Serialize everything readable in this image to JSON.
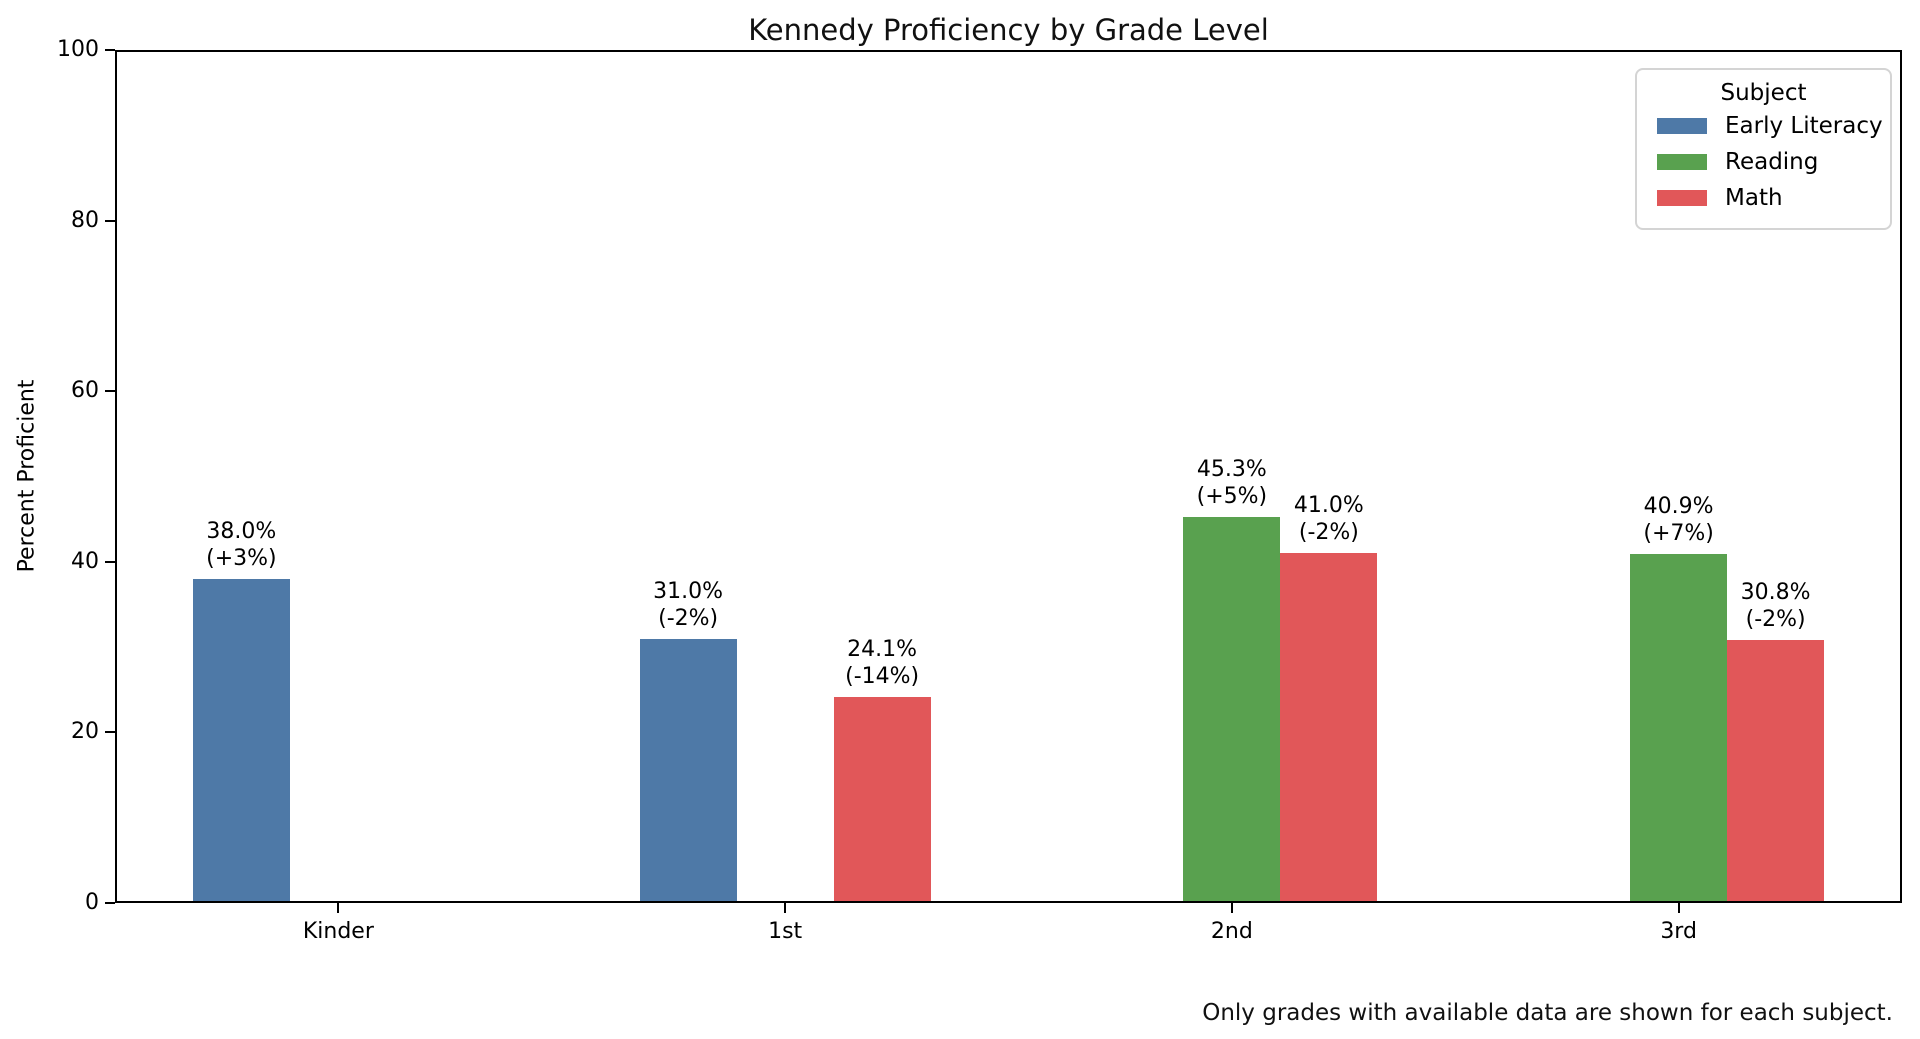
{
  "figure": {
    "title": "Kennedy Proficiency by Grade Level",
    "ylabel": "Percent Proficient",
    "footnote": "Only grades with available data are shown for each subject."
  },
  "legend": {
    "title": "Subject",
    "items": [
      {
        "label": "Early Literacy",
        "color": "#4E79A7"
      },
      {
        "label": "Reading",
        "color": "#59A14F"
      },
      {
        "label": "Math",
        "color": "#E15759"
      }
    ]
  },
  "chart_data": {
    "type": "bar",
    "title": "Kennedy Proficiency by Grade Level",
    "xlabel": "",
    "ylabel": "Percent Proficient",
    "ylim": [
      0,
      100
    ],
    "yticks": [
      0,
      20,
      40,
      60,
      80,
      100
    ],
    "categories": [
      "Kinder",
      "1st",
      "2nd",
      "3rd"
    ],
    "series": [
      {
        "name": "Early Literacy",
        "color": "#4E79A7",
        "values": [
          38.0,
          31.0,
          null,
          null
        ],
        "changes": [
          "+3%",
          "-2%",
          null,
          null
        ]
      },
      {
        "name": "Reading",
        "color": "#59A14F",
        "values": [
          null,
          null,
          45.3,
          40.9
        ],
        "changes": [
          null,
          null,
          "+5%",
          "+7%"
        ]
      },
      {
        "name": "Math",
        "color": "#E15759",
        "values": [
          null,
          24.1,
          41.0,
          30.8
        ],
        "changes": [
          null,
          "-14%",
          "-2%",
          "-2%"
        ]
      }
    ],
    "bar_label_format": "{value}%\n({change})",
    "legend_position": "upper right",
    "grid": false,
    "annotation_note": "Only grades with available data are shown for each subject."
  }
}
